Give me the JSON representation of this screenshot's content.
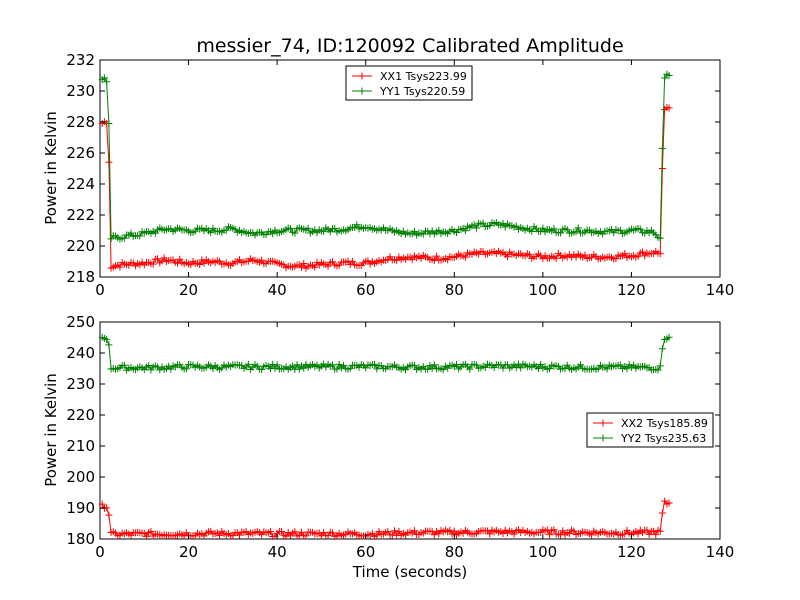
{
  "chart_data": [
    {
      "type": "line",
      "title": "messier_74, ID:120092 Calibrated Amplitude",
      "xlabel": "",
      "ylabel": "Power in Kelvin",
      "xlim": [
        0,
        140
      ],
      "ylim": [
        218,
        232
      ],
      "x_ticks": [
        "0",
        "20",
        "40",
        "60",
        "80",
        "100",
        "120",
        "140"
      ],
      "y_ticks": [
        "218",
        "220",
        "222",
        "224",
        "226",
        "228",
        "230",
        "232"
      ],
      "legend_position": "upper-center",
      "marker": "plus",
      "series": [
        {
          "name": "XX1 Tsys223.99",
          "color": "#ff0000",
          "points": [
            [
              0.5,
              227.9
            ],
            [
              1.0,
              228.0
            ],
            [
              1.5,
              227.9
            ],
            [
              2.0,
              225.4
            ],
            [
              2.5,
              218.7
            ],
            [
              5,
              218.8
            ],
            [
              10,
              218.9
            ],
            [
              15,
              219.1
            ],
            [
              20,
              218.9
            ],
            [
              25,
              219.0
            ],
            [
              30,
              218.9
            ],
            [
              35,
              219.1
            ],
            [
              40,
              218.8
            ],
            [
              45,
              218.7
            ],
            [
              50,
              218.8
            ],
            [
              55,
              218.9
            ],
            [
              60,
              218.9
            ],
            [
              65,
              219.2
            ],
            [
              70,
              219.3
            ],
            [
              75,
              219.2
            ],
            [
              80,
              219.3
            ],
            [
              85,
              219.5
            ],
            [
              90,
              219.5
            ],
            [
              95,
              219.4
            ],
            [
              100,
              219.3
            ],
            [
              105,
              219.4
            ],
            [
              110,
              219.3
            ],
            [
              115,
              219.3
            ],
            [
              120,
              219.4
            ],
            [
              125,
              219.6
            ],
            [
              126.5,
              219.5
            ],
            [
              127,
              225.0
            ],
            [
              127.5,
              228.9
            ],
            [
              128.5,
              228.9
            ]
          ]
        },
        {
          "name": "YY1 Tsys220.59",
          "color": "#008000",
          "points": [
            [
              0.5,
              230.6
            ],
            [
              1.0,
              230.7
            ],
            [
              1.5,
              230.6
            ],
            [
              2.0,
              227.9
            ],
            [
              2.5,
              220.5
            ],
            [
              5,
              220.6
            ],
            [
              10,
              220.8
            ],
            [
              15,
              221.1
            ],
            [
              20,
              221.0
            ],
            [
              25,
              221.0
            ],
            [
              30,
              221.1
            ],
            [
              35,
              220.8
            ],
            [
              40,
              221.0
            ],
            [
              45,
              221.0
            ],
            [
              50,
              221.0
            ],
            [
              55,
              221.1
            ],
            [
              60,
              221.3
            ],
            [
              65,
              221.0
            ],
            [
              70,
              220.8
            ],
            [
              75,
              220.9
            ],
            [
              80,
              221.0
            ],
            [
              85,
              221.3
            ],
            [
              90,
              221.4
            ],
            [
              95,
              221.2
            ],
            [
              100,
              221.0
            ],
            [
              105,
              221.0
            ],
            [
              110,
              221.0
            ],
            [
              115,
              220.9
            ],
            [
              120,
              221.0
            ],
            [
              125,
              220.9
            ],
            [
              126.5,
              220.5
            ],
            [
              127,
              226.3
            ],
            [
              127.5,
              230.9
            ],
            [
              128.5,
              231.0
            ]
          ]
        }
      ]
    },
    {
      "type": "line",
      "title": "",
      "xlabel": "Time (seconds)",
      "ylabel": "Power in Kelvin",
      "xlim": [
        0,
        140
      ],
      "ylim": [
        180,
        250
      ],
      "x_ticks": [
        "0",
        "20",
        "40",
        "60",
        "80",
        "100",
        "120",
        "140"
      ],
      "y_ticks": [
        "180",
        "190",
        "200",
        "210",
        "220",
        "230",
        "240",
        "250"
      ],
      "legend_position": "center-right",
      "marker": "plus",
      "series": [
        {
          "name": "XX2 Tsys185.89",
          "color": "#ff0000",
          "points": [
            [
              0.5,
              190.5
            ],
            [
              1.0,
              190.7
            ],
            [
              1.5,
              190.4
            ],
            [
              2.0,
              188.0
            ],
            [
              2.5,
              181.5
            ],
            [
              10,
              181.6
            ],
            [
              20,
              181.7
            ],
            [
              30,
              181.8
            ],
            [
              40,
              181.6
            ],
            [
              50,
              181.7
            ],
            [
              60,
              181.6
            ],
            [
              70,
              182.0
            ],
            [
              80,
              182.1
            ],
            [
              90,
              182.3
            ],
            [
              100,
              182.2
            ],
            [
              110,
              182.1
            ],
            [
              120,
              182.0
            ],
            [
              126.5,
              182.2
            ],
            [
              127,
              188.0
            ],
            [
              127.5,
              191.5
            ],
            [
              128.5,
              191.6
            ]
          ]
        },
        {
          "name": "YY2 Tsys235.63",
          "color": "#008000",
          "points": [
            [
              0.5,
              245.0
            ],
            [
              1.0,
              245.2
            ],
            [
              1.5,
              245.0
            ],
            [
              2.0,
              242.0
            ],
            [
              2.5,
              235.3
            ],
            [
              10,
              235.2
            ],
            [
              20,
              235.6
            ],
            [
              30,
              235.5
            ],
            [
              40,
              235.5
            ],
            [
              50,
              235.6
            ],
            [
              60,
              235.6
            ],
            [
              70,
              235.4
            ],
            [
              80,
              235.5
            ],
            [
              90,
              235.8
            ],
            [
              100,
              235.6
            ],
            [
              110,
              235.4
            ],
            [
              120,
              235.4
            ],
            [
              126.5,
              235.2
            ],
            [
              127,
              242.0
            ],
            [
              127.5,
              245.0
            ],
            [
              128.5,
              245.1
            ]
          ]
        }
      ]
    }
  ]
}
